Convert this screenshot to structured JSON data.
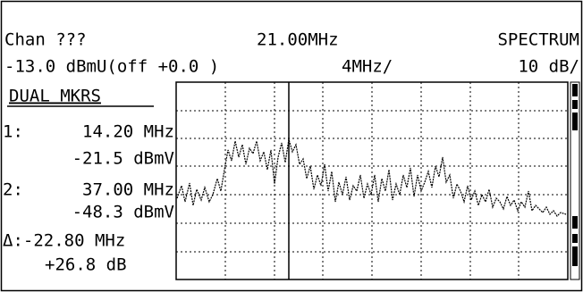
{
  "header": {
    "channel": "Chan ???",
    "frequency": "21.00MHz",
    "mode": "SPECTRUM",
    "reference": "-13.0 dBmU(off +0.0 )",
    "span_per_div": "4MHz/",
    "scale_per_div": "10 dB/"
  },
  "markers": {
    "title": "DUAL MKRS",
    "items": [
      {
        "label": "1:",
        "frequency": "14.20 MHz",
        "level": "-21.5 dBmV"
      },
      {
        "label": "2:",
        "frequency": "37.00 MHz",
        "level": "-48.3 dBmV"
      }
    ],
    "delta": {
      "frequency": "Δ:-22.80 MHz",
      "level": "+26.8 dB"
    }
  }
}
